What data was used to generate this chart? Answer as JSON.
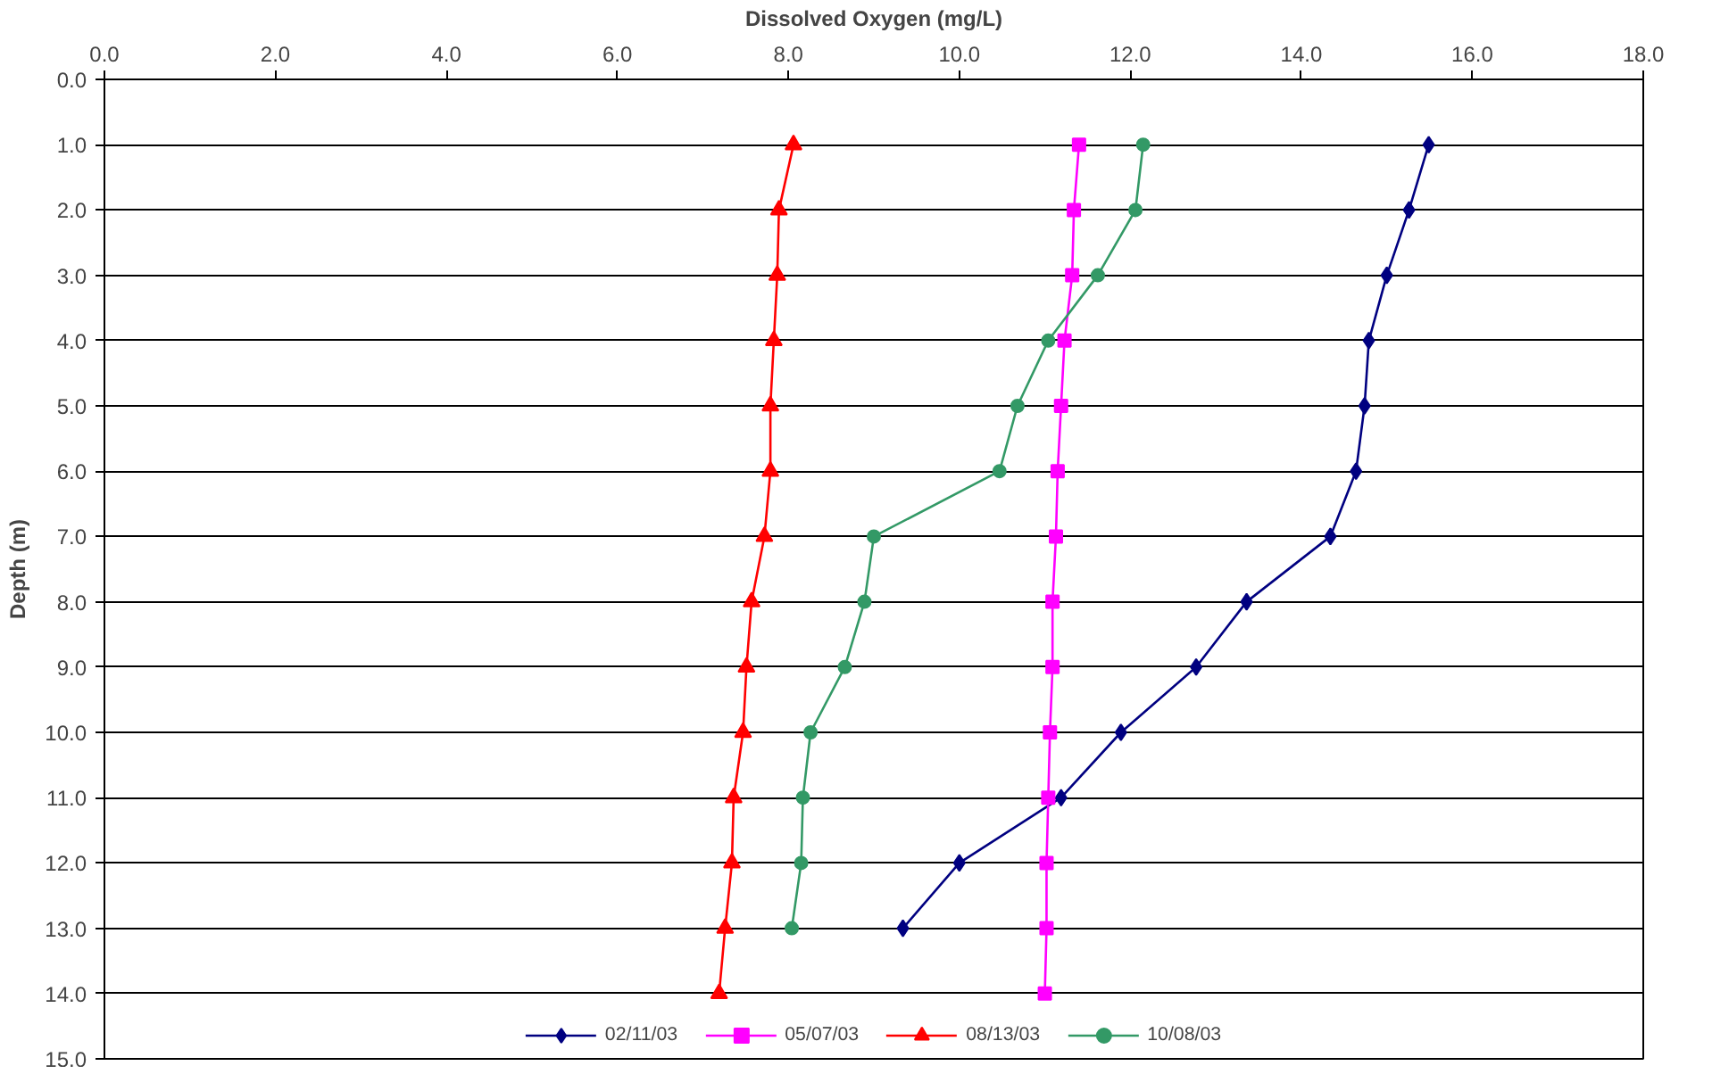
{
  "chart_data": {
    "type": "line",
    "xlabel": "Dissolved Oxygen (mg/L)",
    "ylabel": "Depth (m)",
    "xlim": [
      0,
      18
    ],
    "ylim": [
      15,
      0
    ],
    "xticks": [
      {
        "value": 0,
        "label": "0.0"
      },
      {
        "value": 2,
        "label": "2.0"
      },
      {
        "value": 4,
        "label": "4.0"
      },
      {
        "value": 6,
        "label": "6.0"
      },
      {
        "value": 8,
        "label": "8.0"
      },
      {
        "value": 10,
        "label": "10.0"
      },
      {
        "value": 12,
        "label": "12.0"
      },
      {
        "value": 14,
        "label": "14.0"
      },
      {
        "value": 16,
        "label": "16.0"
      },
      {
        "value": 18,
        "label": "18.0"
      }
    ],
    "yticks": [
      {
        "value": 0,
        "label": "0.0"
      },
      {
        "value": 1,
        "label": "1.0"
      },
      {
        "value": 2,
        "label": "2.0"
      },
      {
        "value": 3,
        "label": "3.0"
      },
      {
        "value": 4,
        "label": "4.0"
      },
      {
        "value": 5,
        "label": "5.0"
      },
      {
        "value": 6,
        "label": "6.0"
      },
      {
        "value": 7,
        "label": "7.0"
      },
      {
        "value": 8,
        "label": "8.0"
      },
      {
        "value": 9,
        "label": "9.0"
      },
      {
        "value": 10,
        "label": "10.0"
      },
      {
        "value": 11,
        "label": "11.0"
      },
      {
        "value": 12,
        "label": "12.0"
      },
      {
        "value": 13,
        "label": "13.0"
      },
      {
        "value": 14,
        "label": "14.0"
      },
      {
        "value": 15,
        "label": "15.0"
      }
    ],
    "grid": "y",
    "legend": "bottom",
    "line_style": "solid",
    "series": [
      {
        "name": "02/11/03",
        "color": "#000080",
        "marker": "diamond",
        "x": [
          15.49,
          15.26,
          15.0,
          14.79,
          14.74,
          14.64,
          14.34,
          13.36,
          12.77,
          11.89,
          11.19,
          10.0,
          9.34
        ],
        "values": [
          1,
          2,
          3,
          4,
          5,
          6,
          7,
          8,
          9,
          10,
          11,
          12,
          13
        ]
      },
      {
        "name": "05/07/03",
        "color": "#ff00ff",
        "marker": "square",
        "x": [
          11.4,
          11.34,
          11.32,
          11.23,
          11.19,
          11.15,
          11.13,
          11.09,
          11.09,
          11.06,
          11.04,
          11.02,
          11.02,
          11.0
        ],
        "values": [
          1,
          2,
          3,
          4,
          5,
          6,
          7,
          8,
          9,
          10,
          11,
          12,
          13,
          14
        ]
      },
      {
        "name": "08/13/03",
        "color": "#ff0000",
        "marker": "triangle",
        "x": [
          8.06,
          7.89,
          7.87,
          7.83,
          7.79,
          7.79,
          7.72,
          7.57,
          7.51,
          7.47,
          7.36,
          7.34,
          7.26,
          7.19
        ],
        "values": [
          1,
          2,
          3,
          4,
          5,
          6,
          7,
          8,
          9,
          10,
          11,
          12,
          13,
          14
        ]
      },
      {
        "name": "10/08/03",
        "color": "#339966",
        "marker": "circle",
        "x": [
          12.15,
          12.06,
          11.62,
          11.04,
          10.68,
          10.47,
          9.0,
          8.89,
          8.66,
          8.26,
          8.17,
          8.15,
          8.04
        ],
        "values": [
          1,
          2,
          3,
          4,
          5,
          6,
          7,
          8,
          9,
          10,
          11,
          12,
          13
        ]
      }
    ]
  }
}
